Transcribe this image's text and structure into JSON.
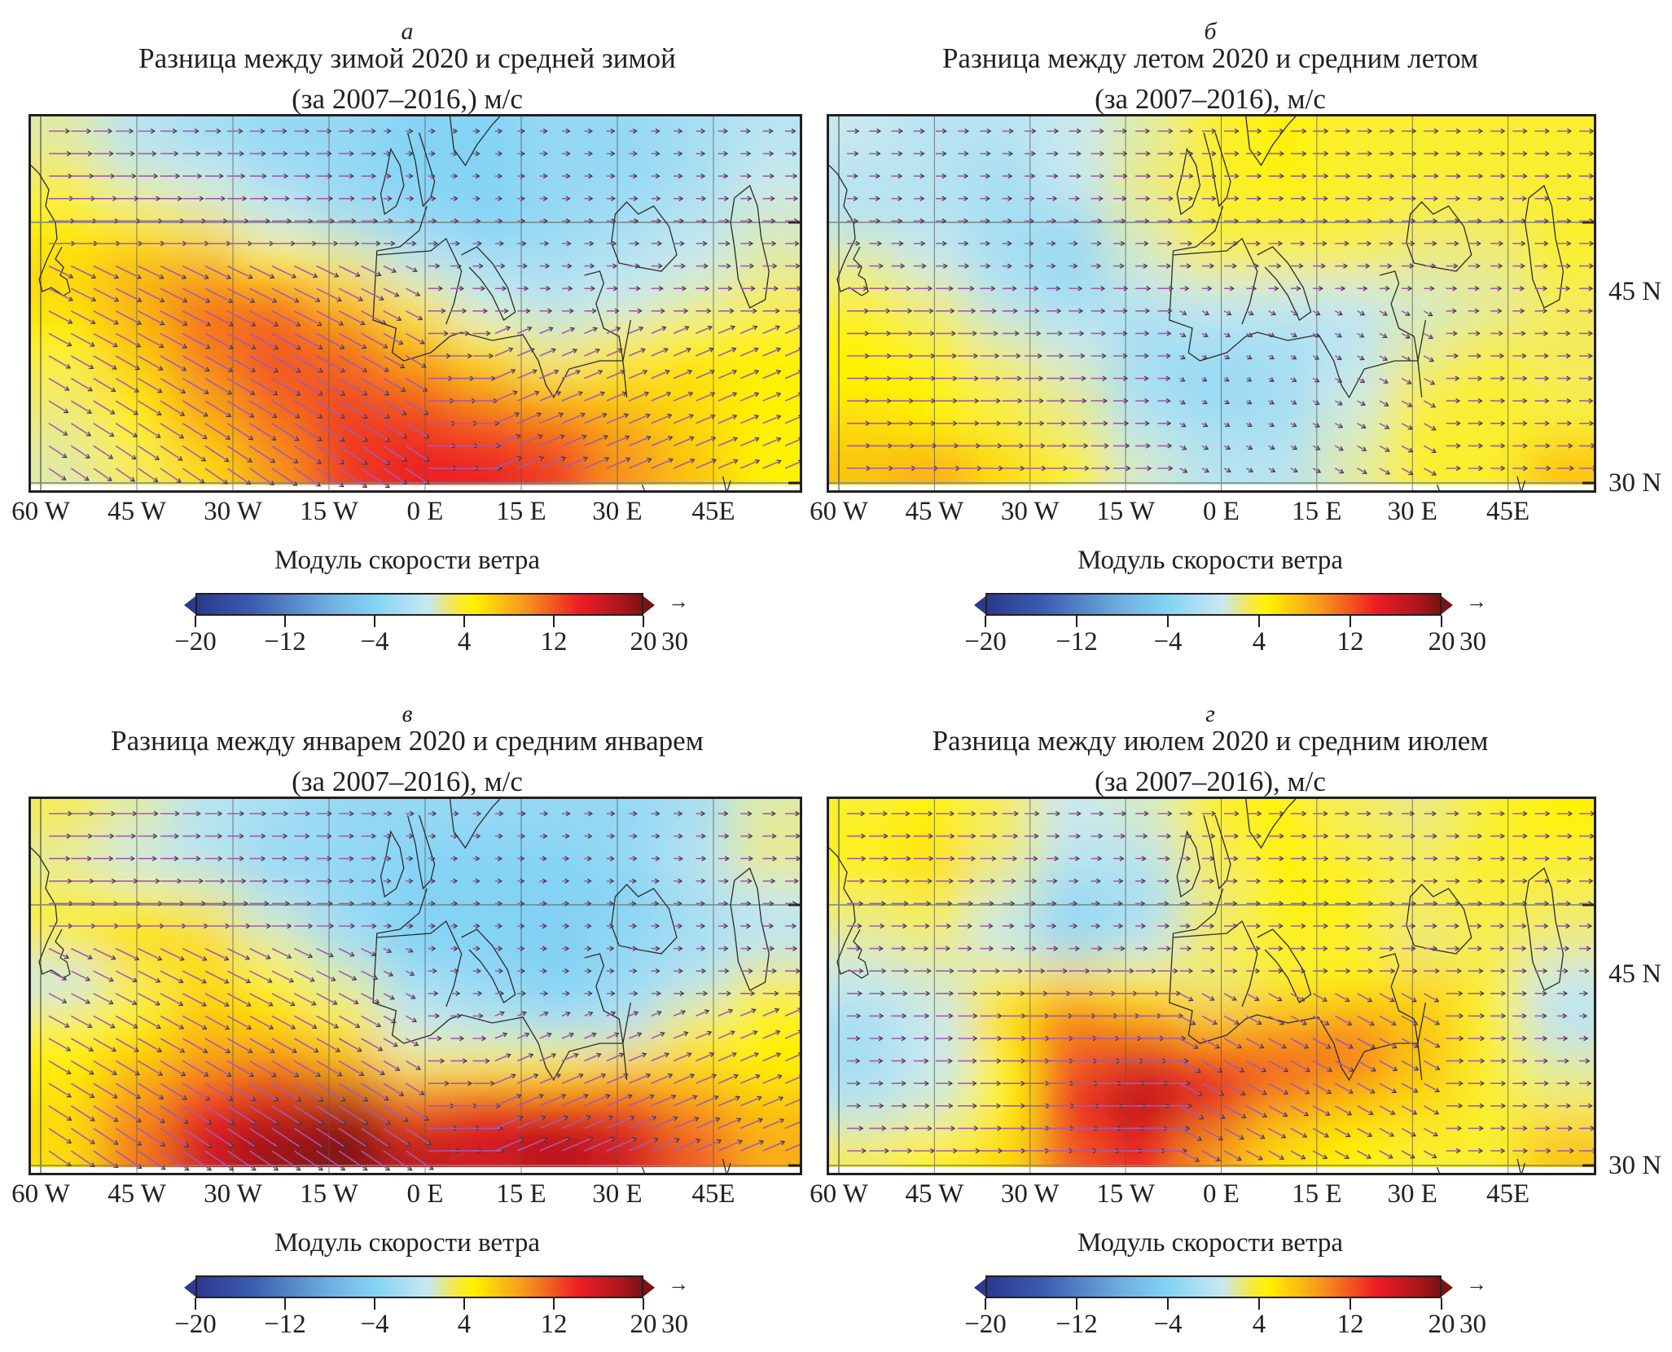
{
  "figure": {
    "colorbar_label": "Модуль скорости ветра",
    "colorbar_ticks": [
      "−20",
      "−12",
      "−4",
      "4",
      "12",
      "20"
    ],
    "reference_arrow_glyph": "→",
    "reference_arrow_value": "30",
    "x_tick_labels": [
      "60 W",
      "45 W",
      "30 W",
      "15 W",
      "0 E",
      "15 E",
      "30 E",
      "45E"
    ],
    "y_tick_labels": [
      "45 N",
      "30 N"
    ]
  },
  "panels": [
    {
      "letter": "а",
      "title_line1": "Разница между зимой 2020 и средней зимой",
      "title_line2": "(за 2007–2016,) м/с"
    },
    {
      "letter": "б",
      "title_line1": "Разница между летом 2020 и средним летом",
      "title_line2": "(за 2007–2016), м/с"
    },
    {
      "letter": "в",
      "title_line1": "Разница между январем 2020 и средним январем",
      "title_line2": "(за 2007–2016), м/с"
    },
    {
      "letter": "г",
      "title_line1": "Разница между июлем 2020 и средним июлем",
      "title_line2": "(за 2007–2016), м/с"
    }
  ],
  "chart_data": [
    {
      "type": "heatmap",
      "title": "Разница между зимой 2020 и средней зимой (за 2007–2016,) м/с",
      "colorbar": {
        "label": "Модуль скорости ветра",
        "range": [
          -20,
          20
        ],
        "ticks": [
          -20,
          -12,
          -4,
          4,
          12,
          20
        ],
        "extend": "both",
        "colors": [
          "#2b3990",
          "#84d3f5",
          "#c8e8f0",
          "#fff200",
          "#f7941d",
          "#ed1c24",
          "#7a1315"
        ]
      },
      "x_range_deg": [
        -60,
        60
      ],
      "y_range_deg": [
        30,
        60
      ],
      "x_ticks": [
        "60 W",
        "45 W",
        "30 W",
        "15 W",
        "0 E",
        "15 E",
        "30 E",
        "45E"
      ],
      "y_ticks": [],
      "vector_reference": {
        "glyph": "→",
        "value": 30
      },
      "grid_values_rows_north_to_south": [
        [
          0,
          -3,
          -4,
          -5,
          -5,
          -6,
          -6,
          -5,
          -5,
          -4,
          -3
        ],
        [
          2,
          -1,
          -2,
          -4,
          -5,
          -6,
          -6,
          -5,
          -5,
          -4,
          -2
        ],
        [
          4,
          3,
          1,
          -2,
          -4,
          -5,
          -6,
          -5,
          -4,
          -3,
          -1
        ],
        [
          5,
          6,
          6,
          4,
          1,
          -3,
          -4,
          -4,
          -3,
          -2,
          0
        ],
        [
          5,
          7,
          9,
          9,
          6,
          2,
          -2,
          -3,
          -2,
          0,
          2
        ],
        [
          4,
          6,
          9,
          10,
          9,
          6,
          3,
          0,
          2,
          4,
          4
        ],
        [
          2,
          5,
          8,
          10,
          10,
          9,
          7,
          5,
          5,
          5,
          4
        ],
        [
          1,
          4,
          7,
          9,
          11,
          11,
          10,
          9,
          7,
          5,
          4
        ],
        [
          0,
          2,
          5,
          8,
          11,
          12,
          12,
          11,
          8,
          6,
          4
        ]
      ],
      "wind_direction_summary": "strong westerly/north-westerly anomaly over the Atlantic, turning to westerly over North Africa"
    },
    {
      "type": "heatmap",
      "title": "Разница между летом 2020 и средним летом (за 2007–2016), м/с",
      "colorbar": {
        "label": "Модуль скорости ветра",
        "range": [
          -20,
          20
        ],
        "ticks": [
          -20,
          -12,
          -4,
          4,
          12,
          20
        ],
        "extend": "both"
      },
      "x_range_deg": [
        -60,
        60
      ],
      "y_range_deg": [
        30,
        60
      ],
      "x_ticks": [
        "60 W",
        "45 W",
        "30 W",
        "15 W",
        "0 E",
        "15 E",
        "30 E",
        "45E"
      ],
      "y_ticks": [
        "45 N",
        "30 N"
      ],
      "vector_reference": {
        "glyph": "→",
        "value": 30
      },
      "grid_values_rows_north_to_south": [
        [
          -2,
          -3,
          -3,
          -2,
          0,
          3,
          4,
          3,
          3,
          3,
          3
        ],
        [
          -3,
          -3,
          -4,
          -2,
          1,
          3,
          4,
          3,
          3,
          3,
          3
        ],
        [
          -3,
          -3,
          -4,
          -4,
          0,
          3,
          3,
          3,
          2,
          2,
          3
        ],
        [
          0,
          -2,
          -4,
          -5,
          -1,
          2,
          2,
          2,
          1,
          1,
          3
        ],
        [
          3,
          1,
          -3,
          -4,
          -3,
          -2,
          -2,
          -2,
          -1,
          0,
          2
        ],
        [
          4,
          3,
          0,
          -2,
          -4,
          -4,
          -4,
          -3,
          0,
          2,
          2
        ],
        [
          4,
          4,
          2,
          0,
          -4,
          -5,
          -4,
          -2,
          2,
          3,
          2
        ],
        [
          5,
          4,
          3,
          1,
          -3,
          -4,
          -4,
          -1,
          3,
          3,
          3
        ],
        [
          6,
          7,
          5,
          3,
          -1,
          -3,
          -3,
          0,
          3,
          3,
          6
        ]
      ],
      "wind_direction_summary": "weak westerly anomaly, strongest across the Atlantic near 40–45 N"
    },
    {
      "type": "heatmap",
      "title": "Разница между январем 2020 и средним январем (за 2007–2016), м/с",
      "colorbar": {
        "label": "Модуль скорости ветра",
        "range": [
          -20,
          20
        ],
        "ticks": [
          -20,
          -12,
          -4,
          4,
          12,
          20
        ],
        "extend": "both"
      },
      "x_range_deg": [
        -60,
        60
      ],
      "y_range_deg": [
        30,
        60
      ],
      "x_ticks": [
        "60 W",
        "45 W",
        "30 W",
        "15 W",
        "0 E",
        "15 E",
        "30 E",
        "45E"
      ],
      "y_ticks": [],
      "vector_reference": {
        "glyph": "→",
        "value": 30
      },
      "grid_values_rows_north_to_south": [
        [
          2,
          0,
          -3,
          -4,
          -5,
          -5,
          -5,
          -5,
          -5,
          -4,
          0
        ],
        [
          0,
          -2,
          -3,
          -5,
          -5,
          -6,
          -6,
          -6,
          -5,
          -3,
          1
        ],
        [
          3,
          3,
          1,
          -3,
          -5,
          -6,
          -6,
          -6,
          -6,
          -4,
          -2
        ],
        [
          2,
          5,
          5,
          0,
          -4,
          -6,
          -6,
          -7,
          -5,
          -4,
          -3
        ],
        [
          -2,
          2,
          5,
          4,
          0,
          -4,
          -5,
          -6,
          -5,
          -3,
          2
        ],
        [
          3,
          4,
          6,
          5,
          3,
          -2,
          -3,
          -4,
          -3,
          2,
          4
        ],
        [
          4,
          6,
          8,
          9,
          7,
          2,
          3,
          4,
          5,
          5,
          4
        ],
        [
          5,
          8,
          12,
          14,
          16,
          10,
          12,
          12,
          11,
          8,
          6
        ],
        [
          5,
          9,
          14,
          18,
          20,
          15,
          14,
          16,
          14,
          10,
          7
        ]
      ],
      "wind_direction_summary": "strong north-westerly anomaly over the eastern Atlantic and westerly-to-south-westerly anomaly over North Africa and the Middle East"
    },
    {
      "type": "heatmap",
      "title": "Разница между июлем 2020 и средним июлем (за 2007–2016), м/с",
      "colorbar": {
        "label": "Модуль скорости ветра",
        "range": [
          -20,
          20
        ],
        "ticks": [
          -20,
          -12,
          -4,
          4,
          12,
          20
        ],
        "extend": "both"
      },
      "x_range_deg": [
        -60,
        60
      ],
      "y_range_deg": [
        30,
        60
      ],
      "x_ticks": [
        "60 W",
        "45 W",
        "30 W",
        "15 W",
        "0 E",
        "15 E",
        "30 E",
        "45E"
      ],
      "y_ticks": [
        "45 N",
        "30 N"
      ],
      "vector_reference": {
        "glyph": "→",
        "value": 30
      },
      "grid_values_rows_north_to_south": [
        [
          3,
          4,
          2,
          -2,
          -1,
          3,
          4,
          2,
          1,
          3,
          4
        ],
        [
          4,
          5,
          1,
          -3,
          -3,
          2,
          4,
          3,
          2,
          3,
          3
        ],
        [
          2,
          3,
          -1,
          -5,
          -4,
          1,
          4,
          4,
          2,
          3,
          2
        ],
        [
          0,
          1,
          -2,
          -5,
          -3,
          2,
          3,
          3,
          1,
          2,
          1
        ],
        [
          -2,
          -1,
          3,
          5,
          4,
          1,
          3,
          4,
          5,
          3,
          -2
        ],
        [
          -4,
          -2,
          5,
          9,
          8,
          6,
          7,
          8,
          6,
          3,
          -3
        ],
        [
          -4,
          -2,
          4,
          10,
          13,
          11,
          10,
          9,
          6,
          3,
          0
        ],
        [
          -3,
          -1,
          4,
          12,
          16,
          13,
          8,
          6,
          5,
          3,
          2
        ],
        [
          2,
          4,
          5,
          10,
          12,
          8,
          5,
          4,
          3,
          3,
          6
        ]
      ],
      "wind_direction_summary": "westerly anomaly across 35–45 N in the Atlantic, north-westerly over the eastern Mediterranean"
    }
  ]
}
